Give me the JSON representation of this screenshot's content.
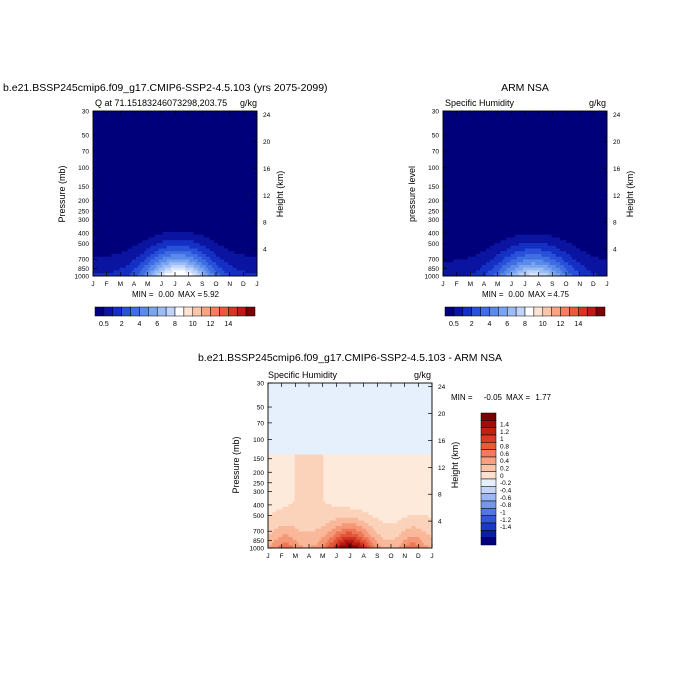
{
  "colors": {
    "blue_scale": [
      "#00007a",
      "#0a14a0",
      "#1430c4",
      "#2850d8",
      "#3f6ee2",
      "#5a8aea",
      "#7ba4f0",
      "#9cbcf4",
      "#bfd4f8",
      "#dce8fb",
      "#ffffff"
    ],
    "warm_scale": [
      "#ffffff",
      "#fde3d2",
      "#fbc6ac",
      "#f8a482",
      "#f3805c",
      "#ea5a3a",
      "#d93323",
      "#bf1a17",
      "#9a0a0e",
      "#7a0005"
    ],
    "diff_neg": [
      "#00007a",
      "#0a1aa8",
      "#1535cc",
      "#2d55db",
      "#4a72e6",
      "#6a8def",
      "#8aa6f4",
      "#abc1f7",
      "#cddcfb",
      "#e6f0fd"
    ],
    "diff_pos": [
      "#fdeadb",
      "#fbd3bb",
      "#f9b89a",
      "#f59877",
      "#ee7756",
      "#e3553a",
      "#d2351f",
      "#b51b12",
      "#930a0a",
      "#7a0000"
    ]
  },
  "month_labels": [
    "J",
    "F",
    "M",
    "A",
    "M",
    "J",
    "J",
    "A",
    "S",
    "O",
    "N",
    "D",
    "J"
  ],
  "pressure_ticks": [
    "30",
    "50",
    "70",
    "100",
    "150",
    "200",
    "250",
    "300",
    "400",
    "500",
    "700",
    "850",
    "1000"
  ],
  "height_ticks": [
    "24",
    "20",
    "16",
    "12",
    "8",
    "4"
  ],
  "chart_data": [
    {
      "type": "heatmap",
      "title": "b.e21.BSSP245cmip6.f09_g17.CMIP6-SSP2-4.5.103 (yrs 2075-2099)",
      "subtitle_left": "Q at 71.15183246073298,203.75",
      "subtitle_right": "g/kg",
      "ylabel": "Pressure (mb)",
      "ylabel_right": "Height (km)",
      "min_label": "MIN =",
      "min_value": "0.00",
      "max_label": "MAX =",
      "max_value": "5.92",
      "peak": 5.92,
      "colorbar_labels": [
        "0.5",
        "2",
        "4",
        "6",
        "8",
        "10",
        "12",
        "14"
      ]
    },
    {
      "type": "heatmap",
      "title": "ARM NSA",
      "subtitle_left": "Specific Humidity",
      "subtitle_right": "g/kg",
      "ylabel": "pressure level",
      "ylabel_right": "Height (km)",
      "min_label": "MIN =",
      "min_value": "0.00",
      "max_label": "MAX =",
      "max_value": "4.75",
      "peak": 4.75,
      "colorbar_labels": [
        "0.5",
        "2",
        "4",
        "6",
        "8",
        "10",
        "12",
        "14"
      ]
    },
    {
      "type": "heatmap",
      "title": "b.e21.BSSP245cmip6.f09_g17.CMIP6-SSP2-4.5.103 - ARM NSA",
      "subtitle_left": "Specific Humidity",
      "subtitle_right": "g/kg",
      "ylabel": "Pressure (mb)",
      "ylabel_right": "Height (km)",
      "min_label": "MIN =",
      "min_value": "-0.05",
      "max_label": "MAX =",
      "max_value": "1.77",
      "colorbar_labels": [
        "1.4",
        "1.2",
        "1",
        "0.8",
        "0.6",
        "0.4",
        "0.2",
        "0",
        "-0.2",
        "-0.4",
        "-0.6",
        "-0.8",
        "-1",
        "-1.2",
        "-1.4"
      ]
    }
  ]
}
